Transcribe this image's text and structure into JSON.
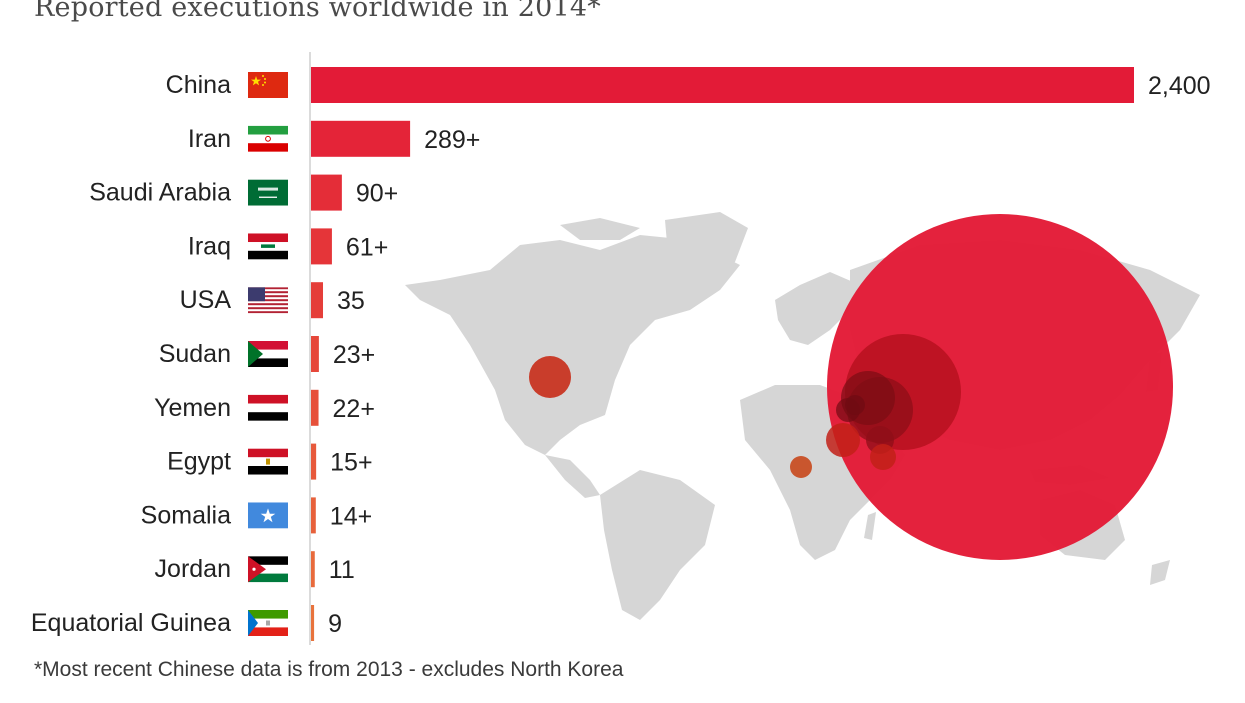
{
  "title": "Reported executions worldwide in 2014*",
  "footnote": "*Most recent Chinese data is from 2013 - excludes North Korea",
  "colors": {
    "bar_high": "#e31b37",
    "bar_low": "#e8733c",
    "map_land": "#d6d6d6"
  },
  "chart_data": {
    "type": "bar",
    "orientation": "horizontal",
    "categories": [
      "China",
      "Iran",
      "Saudi Arabia",
      "Iraq",
      "USA",
      "Sudan",
      "Yemen",
      "Egypt",
      "Somalia",
      "Jordan",
      "Equatorial Guinea"
    ],
    "values": [
      2400,
      289,
      90,
      61,
      35,
      23,
      22,
      15,
      14,
      11,
      9
    ],
    "value_labels": [
      "2,400",
      "289+",
      "90+",
      "61+",
      "35",
      "23+",
      "22+",
      "15+",
      "14+",
      "11",
      "9"
    ],
    "flags": [
      "china-flag",
      "iran-flag",
      "saudi-arabia-flag",
      "iraq-flag",
      "usa-flag",
      "sudan-flag",
      "yemen-flag",
      "egypt-flag",
      "somalia-flag",
      "jordan-flag",
      "equatorial-guinea-flag"
    ],
    "xlim": [
      0,
      2400
    ],
    "grid": false,
    "background": "world map with proportional circles per country"
  }
}
